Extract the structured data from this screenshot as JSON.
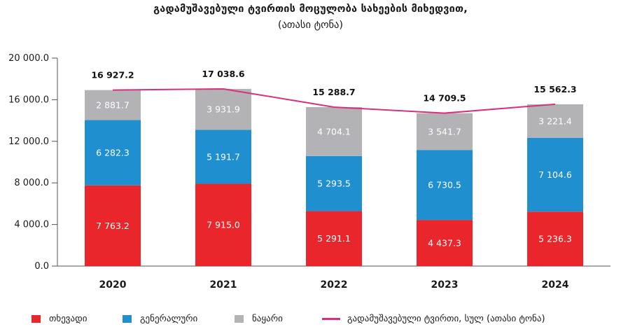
{
  "title": "გადამუშავებული ტვირთის მოცულობა სახეების მიხედვით,",
  "subtitle": "(ათასი ტონა)",
  "colors": {
    "series1": "#e8262b",
    "series2": "#1f8fd0",
    "series3": "#b3b3b5",
    "total": "#d6317e"
  },
  "chart_data": {
    "type": "bar",
    "stacked": true,
    "categories": [
      "2020",
      "2021",
      "2022",
      "2023",
      "2024"
    ],
    "series": [
      {
        "name": "თხევადი",
        "values": [
          7763.2,
          7915.0,
          5291.1,
          4437.3,
          5236.3
        ],
        "labels": [
          "7 763.2",
          "7 915.0",
          "5 291.1",
          "4 437.3",
          "5 236.3"
        ]
      },
      {
        "name": "გენერალური",
        "values": [
          6282.3,
          5191.7,
          5293.5,
          6730.5,
          7104.6
        ],
        "labels": [
          "6 282.3",
          "5 191.7",
          "5 293.5",
          "6 730.5",
          "7 104.6"
        ]
      },
      {
        "name": "ნაყარი",
        "values": [
          2881.7,
          3931.9,
          4704.1,
          3541.7,
          3221.4
        ],
        "labels": [
          "2 881.7",
          "3 931.9",
          "4 704.1",
          "3 541.7",
          "3 221.4"
        ]
      }
    ],
    "total_series": {
      "name": "გადამუშავებული ტვირთი, სულ (ათასი ტონა)",
      "type": "line",
      "values": [
        16927.2,
        17038.6,
        15288.7,
        14709.5,
        15562.3
      ],
      "labels": [
        "16 927.2",
        "17 038.6",
        "15 288.7",
        "14 709.5",
        "15 562.3"
      ]
    },
    "ylim": [
      0,
      20000
    ],
    "yticks": [
      0,
      4000,
      8000,
      12000,
      16000,
      20000
    ],
    "ytick_labels": [
      "0.0",
      "4 000.0",
      "8 000.0",
      "12 000.0",
      "16 000.0",
      "20 000.0"
    ],
    "legend_position": "bottom",
    "grid": false
  }
}
